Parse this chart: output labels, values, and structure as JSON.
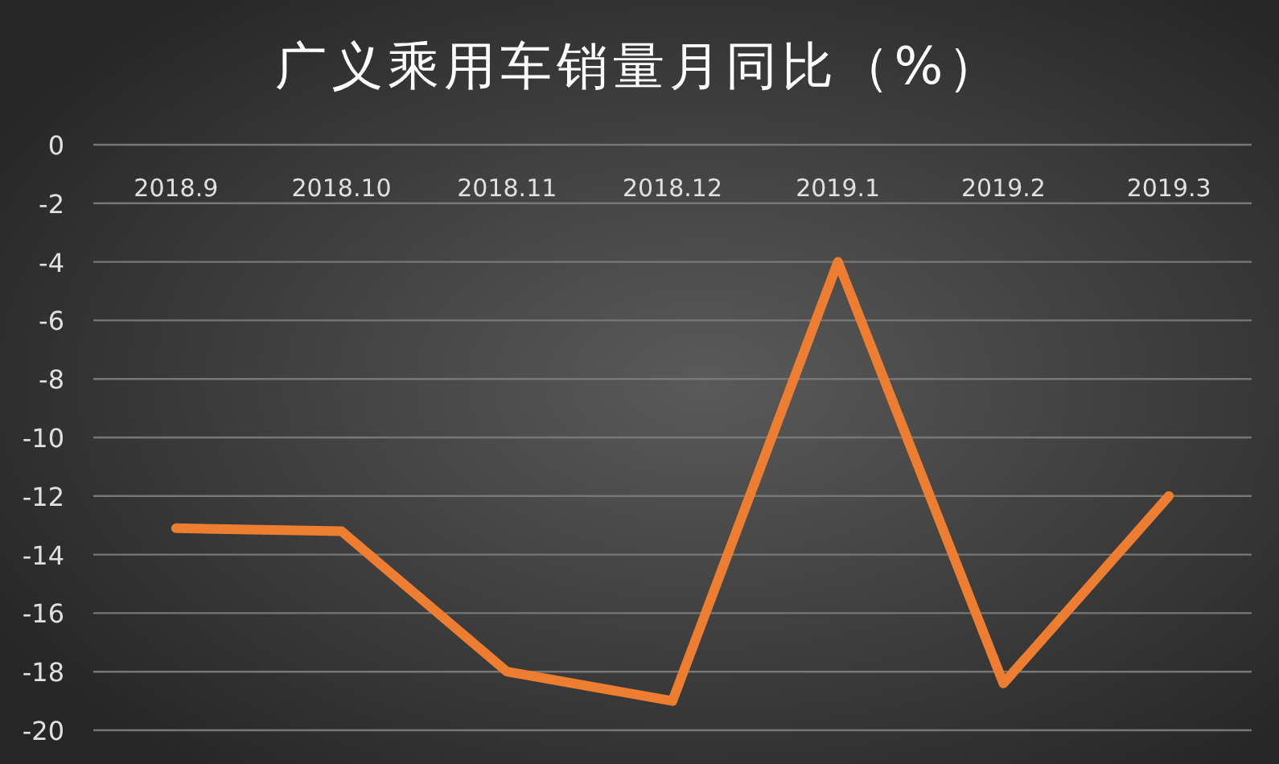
{
  "chart_data": {
    "type": "line",
    "title": "广义乘用车销量月同比（%）",
    "categories": [
      "2018.9",
      "2018.10",
      "2018.11",
      "2018.12",
      "2019.1",
      "2019.2",
      "2019.3"
    ],
    "series": [
      {
        "color": "#ed7d31",
        "values": [
          -13.1,
          -13.2,
          -18.0,
          -19.0,
          -4.0,
          -18.4,
          -12.0
        ]
      }
    ],
    "ylim": [
      -20,
      0
    ],
    "yticks": [
      0,
      -2,
      -4,
      -6,
      -8,
      -10,
      -12,
      -14,
      -16,
      -18,
      -20
    ],
    "grid": "y",
    "marker": "none",
    "line_style": "solid"
  }
}
